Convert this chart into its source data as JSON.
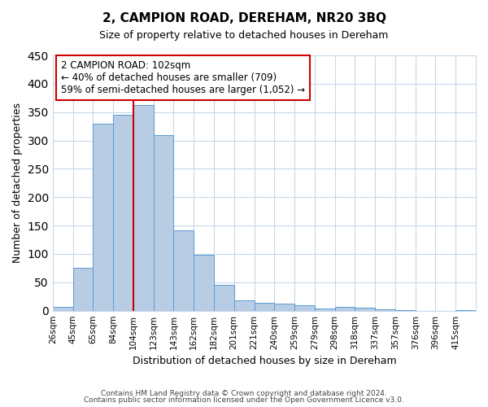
{
  "title": "2, CAMPION ROAD, DEREHAM, NR20 3BQ",
  "subtitle": "Size of property relative to detached houses in Dereham",
  "xlabel": "Distribution of detached houses by size in Dereham",
  "ylabel": "Number of detached properties",
  "bar_values": [
    7,
    75,
    330,
    345,
    362,
    310,
    142,
    99,
    46,
    18,
    14,
    12,
    10,
    4,
    6,
    5,
    2,
    1,
    0,
    0,
    1
  ],
  "bar_labels": [
    "26sqm",
    "45sqm",
    "65sqm",
    "84sqm",
    "104sqm",
    "123sqm",
    "143sqm",
    "162sqm",
    "182sqm",
    "201sqm",
    "221sqm",
    "240sqm",
    "259sqm",
    "279sqm",
    "298sqm",
    "318sqm",
    "337sqm",
    "357sqm",
    "376sqm",
    "396sqm",
    "415sqm"
  ],
  "bar_color": "#b8cce4",
  "bar_edge_color": "#5b9bd5",
  "ylim": [
    0,
    450
  ],
  "yticks": [
    0,
    50,
    100,
    150,
    200,
    250,
    300,
    350,
    400,
    450
  ],
  "property_line_x": 4,
  "property_line_color": "#cc0000",
  "annotation_title": "2 CAMPION ROAD: 102sqm",
  "annotation_line1": "← 40% of detached houses are smaller (709)",
  "annotation_line2": "59% of semi-detached houses are larger (1,052) →",
  "annotation_box_color": "#ffffff",
  "annotation_box_edge": "#cc0000",
  "footer1": "Contains HM Land Registry data © Crown copyright and database right 2024.",
  "footer2": "Contains public sector information licensed under the Open Government Licence v3.0.",
  "bg_color": "#ffffff",
  "grid_color": "#c8d8e8"
}
